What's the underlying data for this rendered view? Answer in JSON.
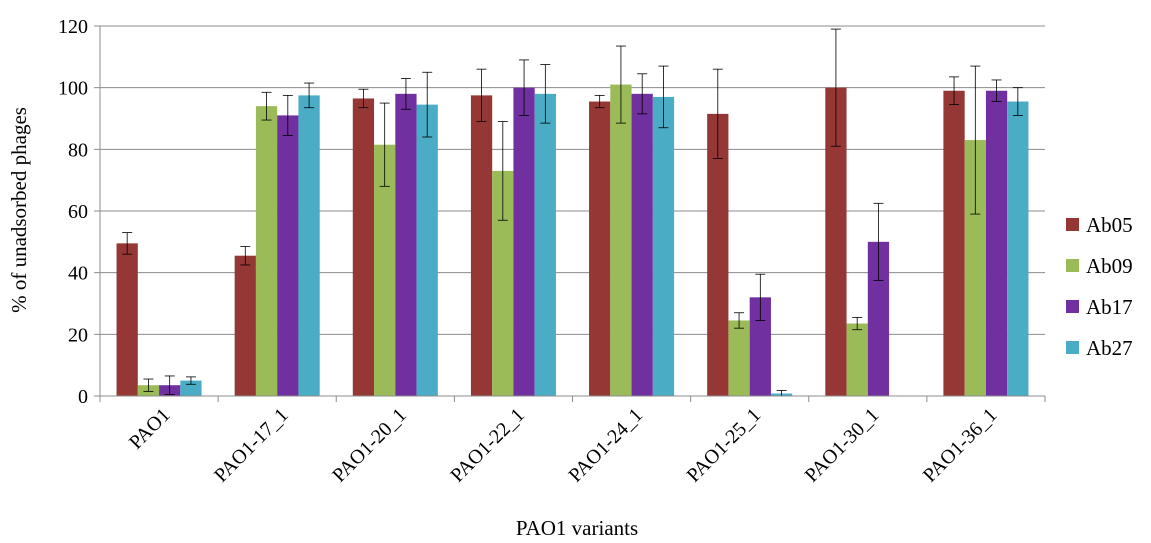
{
  "chart_data": {
    "type": "bar",
    "title": "",
    "xlabel": "PAO1 variants",
    "ylabel": "% of unadsorbed phages",
    "ylim": [
      0,
      120
    ],
    "yticks": [
      0,
      20,
      40,
      60,
      80,
      100,
      120
    ],
    "grid": true,
    "legend_position": "right",
    "categories": [
      "PAO1",
      "PAO1-17_1",
      "PAO1-20_1",
      "PAO1-22_1",
      "PAO1-24_1",
      "PAO1-25_1",
      "PAO1-30_1",
      "PAO1-36_1"
    ],
    "series": [
      {
        "name": "Ab05",
        "color": "#953735",
        "values": [
          49.5,
          45.5,
          96.5,
          97.5,
          95.5,
          91.5,
          100,
          99
        ],
        "errors": [
          3.5,
          3,
          3,
          8.5,
          2,
          14.5,
          19,
          4.5
        ]
      },
      {
        "name": "Ab09",
        "color": "#9bbb59",
        "values": [
          3.5,
          94,
          81.5,
          73,
          101,
          24.5,
          23.5,
          83
        ],
        "errors": [
          2,
          4.5,
          13.5,
          16,
          12.5,
          2.5,
          2,
          24
        ]
      },
      {
        "name": "Ab17",
        "color": "#7030a0",
        "values": [
          3.5,
          91,
          98,
          100,
          98,
          32,
          50,
          99
        ],
        "errors": [
          3,
          6.5,
          5,
          9,
          6.5,
          7.5,
          12.5,
          3.5
        ]
      },
      {
        "name": "Ab27",
        "color": "#4bacc6",
        "values": [
          5,
          97.5,
          94.5,
          98,
          97,
          0.8,
          0,
          95.5
        ],
        "errors": [
          1.2,
          4,
          10.5,
          9.5,
          10,
          1,
          0,
          4.5
        ]
      }
    ]
  }
}
